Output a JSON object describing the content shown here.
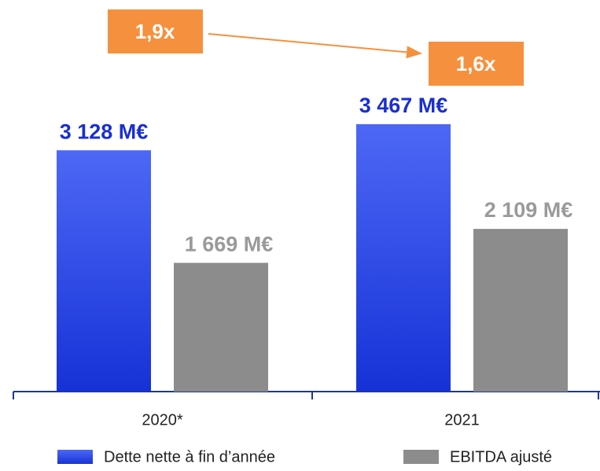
{
  "chart_data": {
    "type": "bar",
    "categories": [
      "2020*",
      "2021"
    ],
    "series": [
      {
        "name": "Dette nette à fin d’année",
        "color": "#2440e0",
        "values": [
          3128,
          3467
        ],
        "value_labels": [
          "3 128 M€",
          "3 467 M€"
        ]
      },
      {
        "name": "EBITDA ajusté",
        "color": "#8c8c8c",
        "values": [
          1669,
          2109
        ],
        "value_labels": [
          "1 669 M€",
          "2 109 M€"
        ]
      }
    ],
    "annotations": [
      "1,9x",
      "1,6x"
    ],
    "legend": "bottom"
  }
}
